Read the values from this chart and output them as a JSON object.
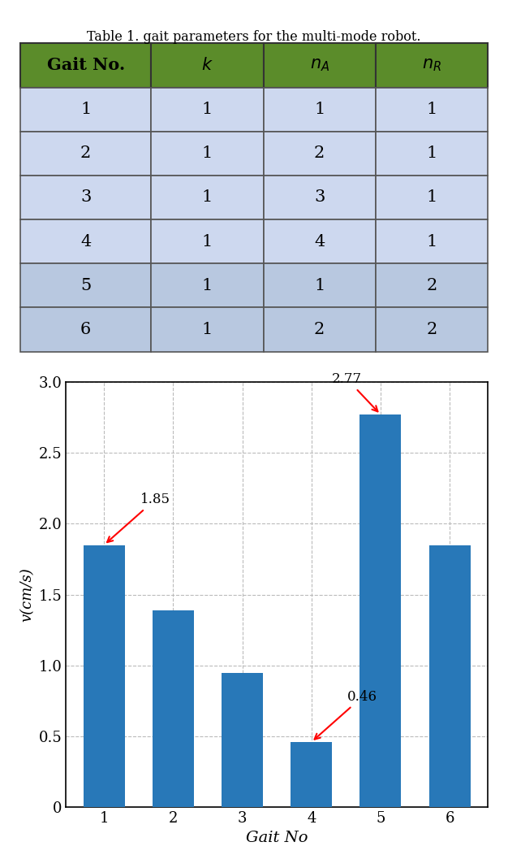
{
  "title": "Table 1. gait parameters for the multi-mode robot.",
  "table_header_labels": [
    "Gait No.",
    "$k$",
    "$n_{A}$",
    "$n_{R}$"
  ],
  "table_data": [
    [
      "1",
      "1",
      "1",
      "1"
    ],
    [
      "2",
      "1",
      "2",
      "1"
    ],
    [
      "3",
      "1",
      "3",
      "1"
    ],
    [
      "4",
      "1",
      "4",
      "1"
    ],
    [
      "5",
      "1",
      "1",
      "2"
    ],
    [
      "6",
      "1",
      "2",
      "2"
    ]
  ],
  "row_colors": [
    "#cdd8ef",
    "#cdd8ef",
    "#cdd8ef",
    "#cdd8ef",
    "#b8c8e0",
    "#b8c8e0"
  ],
  "header_color": "#5b8c2a",
  "bar_values": [
    1.85,
    1.39,
    0.95,
    0.46,
    2.77,
    1.85
  ],
  "bar_color": "#2878b8",
  "bar_categories": [
    "1",
    "2",
    "3",
    "4",
    "5",
    "6"
  ],
  "xlabel": "Gait No",
  "ylabel": "v(cm/s)",
  "ylim": [
    0,
    3.0
  ],
  "yticks": [
    0,
    0.5,
    1.0,
    1.5,
    2.0,
    2.5,
    3.0
  ]
}
